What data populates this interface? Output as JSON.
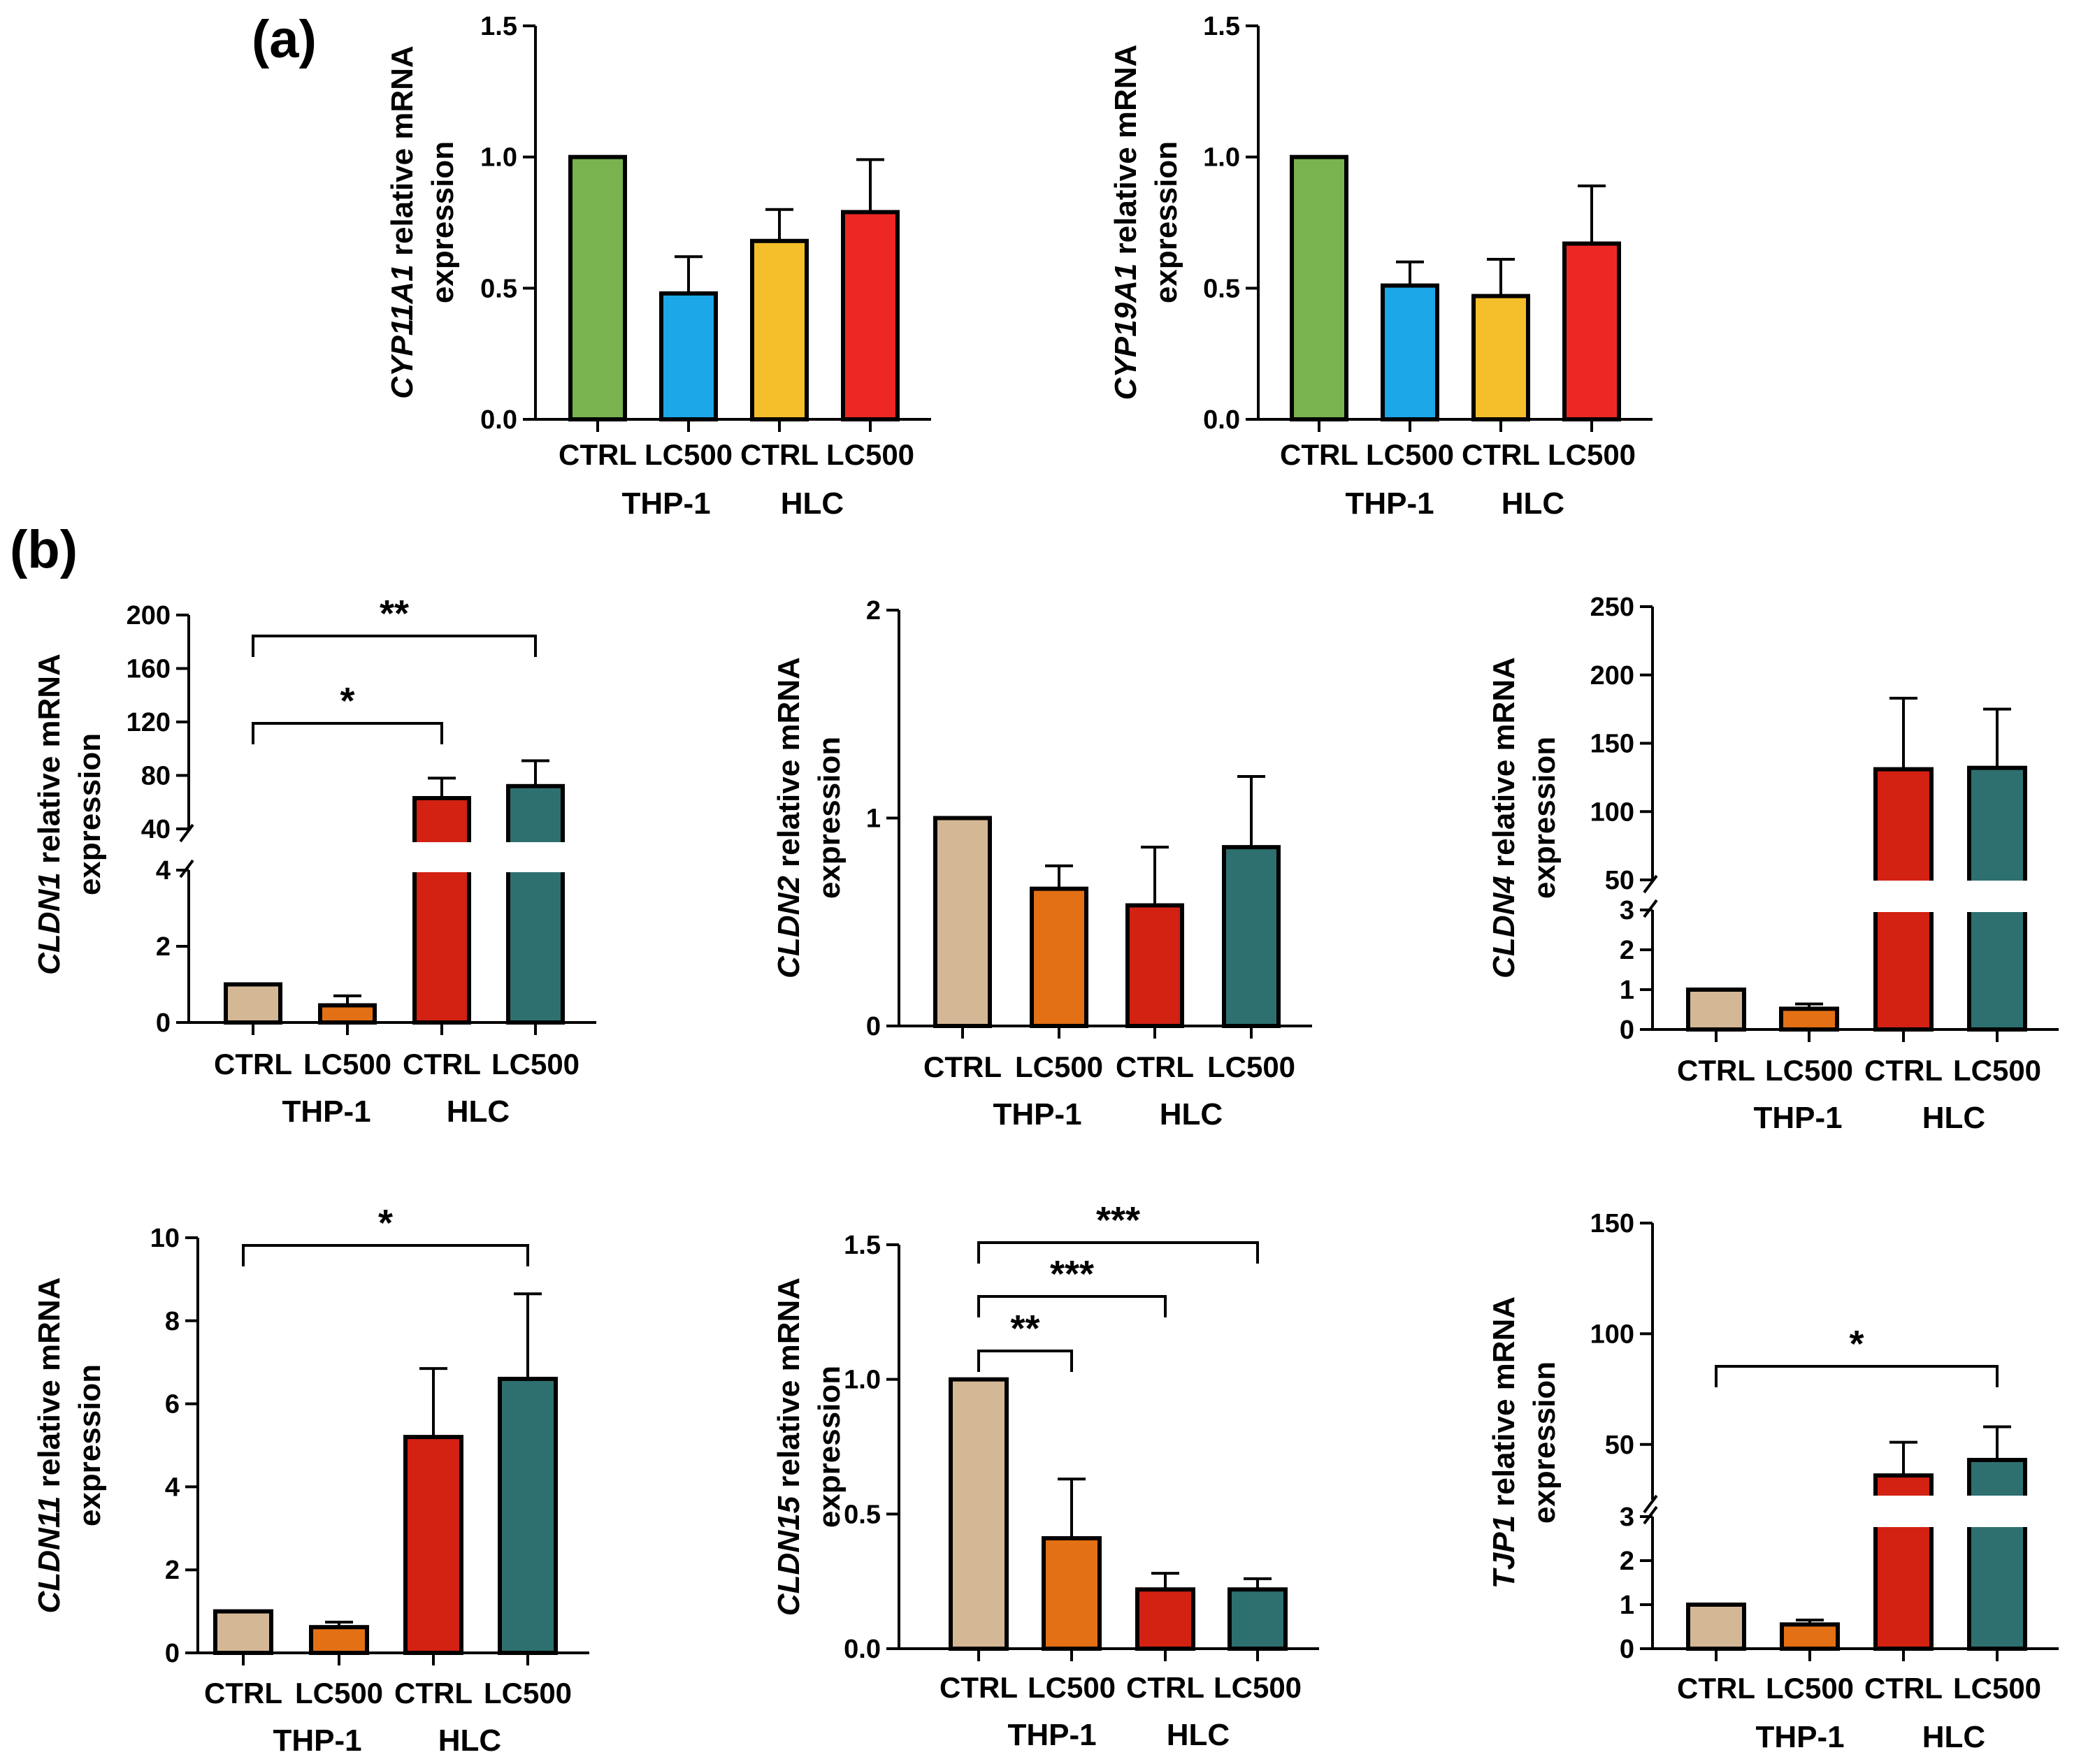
{
  "panel_labels": [
    "(a)",
    "(b)"
  ],
  "y_title_suffix": "relative mRNA",
  "y_title_line2": "expression",
  "categories": [
    "CTRL",
    "LC500",
    "CTRL",
    "LC500"
  ],
  "groups": [
    "THP-1",
    "HLC"
  ],
  "colors": {
    "panel_a": [
      "#78b350",
      "#1ba7e8",
      "#f4bf2a",
      "#ed2824"
    ],
    "panel_b": [
      "#d4b895",
      "#e37015",
      "#d32112",
      "#2e7070"
    ]
  },
  "chart_data": [
    {
      "id": "cyp11a1",
      "type": "bar",
      "gene": "CYP11A1",
      "categories": [
        "CTRL",
        "LC500",
        "CTRL",
        "LC500"
      ],
      "groups": [
        "THP-1",
        "HLC"
      ],
      "values": [
        1.0,
        0.48,
        0.68,
        0.79
      ],
      "errors": [
        0,
        0.14,
        0.12,
        0.2
      ],
      "ylim": [
        0,
        1.5
      ],
      "ticks": [
        "0.0",
        "0.5",
        "1.0",
        "1.5"
      ],
      "significance": []
    },
    {
      "id": "cyp19a1",
      "type": "bar",
      "gene": "CYP19A1",
      "categories": [
        "CTRL",
        "LC500",
        "CTRL",
        "LC500"
      ],
      "groups": [
        "THP-1",
        "HLC"
      ],
      "values": [
        1.0,
        0.51,
        0.47,
        0.67
      ],
      "errors": [
        0,
        0.09,
        0.14,
        0.22
      ],
      "ylim": [
        0,
        1.5
      ],
      "ticks": [
        "0.0",
        "0.5",
        "1.0",
        "1.5"
      ],
      "significance": []
    },
    {
      "id": "cldn1",
      "type": "bar",
      "gene": "CLDN1",
      "categories": [
        "CTRL",
        "LC500",
        "CTRL",
        "LC500"
      ],
      "groups": [
        "THP-1",
        "HLC"
      ],
      "values": [
        1.0,
        0.45,
        63,
        72
      ],
      "errors": [
        0,
        0.25,
        15,
        19
      ],
      "axis_break": {
        "lower": [
          0,
          4
        ],
        "upper": [
          40,
          200
        ]
      },
      "ticks": [
        "0",
        "2",
        "4",
        "40",
        "80",
        "120",
        "160",
        "200"
      ],
      "significance": [
        {
          "from": 0,
          "to": 2,
          "label": "*"
        },
        {
          "from": 0,
          "to": 3,
          "label": "**"
        }
      ]
    },
    {
      "id": "cldn2",
      "type": "bar",
      "gene": "CLDN2",
      "categories": [
        "CTRL",
        "LC500",
        "CTRL",
        "LC500"
      ],
      "groups": [
        "THP-1",
        "HLC"
      ],
      "values": [
        1.0,
        0.66,
        0.58,
        0.86
      ],
      "errors": [
        0,
        0.11,
        0.28,
        0.34
      ],
      "ylim": [
        0,
        2
      ],
      "ticks": [
        "0",
        "1",
        "2"
      ],
      "significance": []
    },
    {
      "id": "cldn4",
      "type": "bar",
      "gene": "CLDN4",
      "categories": [
        "CTRL",
        "LC500",
        "CTRL",
        "LC500"
      ],
      "groups": [
        "THP-1",
        "HLC"
      ],
      "values": [
        1.0,
        0.52,
        131,
        132
      ],
      "errors": [
        0,
        0.12,
        52,
        43
      ],
      "axis_break": {
        "lower": [
          0,
          3
        ],
        "upper": [
          50,
          250
        ]
      },
      "ticks": [
        "0",
        "1",
        "2",
        "3",
        "50",
        "100",
        "150",
        "200",
        "250"
      ],
      "significance": []
    },
    {
      "id": "cldn11",
      "type": "bar",
      "gene": "CLDN11",
      "categories": [
        "CTRL",
        "LC500",
        "CTRL",
        "LC500"
      ],
      "groups": [
        "THP-1",
        "HLC"
      ],
      "values": [
        1.0,
        0.62,
        5.2,
        6.6
      ],
      "errors": [
        0,
        0.12,
        1.65,
        2.05
      ],
      "ylim": [
        0,
        10
      ],
      "ticks": [
        "0",
        "2",
        "4",
        "6",
        "8",
        "10"
      ],
      "significance": [
        {
          "from": 0,
          "to": 3,
          "label": "*"
        }
      ]
    },
    {
      "id": "cldn15",
      "type": "bar",
      "gene": "CLDN15",
      "categories": [
        "CTRL",
        "LC500",
        "CTRL",
        "LC500"
      ],
      "groups": [
        "THP-1",
        "HLC"
      ],
      "values": [
        1.0,
        0.41,
        0.22,
        0.22
      ],
      "errors": [
        0,
        0.22,
        0.06,
        0.04
      ],
      "ylim": [
        0,
        1.5
      ],
      "ticks": [
        "0.0",
        "0.5",
        "1.0",
        "1.5"
      ],
      "significance": [
        {
          "from": 0,
          "to": 1,
          "label": "**"
        },
        {
          "from": 0,
          "to": 2,
          "label": "***"
        },
        {
          "from": 0,
          "to": 3,
          "label": "***"
        }
      ]
    },
    {
      "id": "tjp1",
      "type": "bar",
      "gene": "TJP1",
      "categories": [
        "CTRL",
        "LC500",
        "CTRL",
        "LC500"
      ],
      "groups": [
        "THP-1",
        "HLC"
      ],
      "values": [
        1.0,
        0.55,
        36,
        43
      ],
      "errors": [
        0,
        0.1,
        15,
        15
      ],
      "axis_break": {
        "lower": [
          0,
          3
        ],
        "upper": [
          25,
          150
        ]
      },
      "ticks": [
        "0",
        "1",
        "2",
        "3",
        "50",
        "100",
        "150"
      ],
      "significance": [
        {
          "from": 0,
          "to": 3,
          "label": "*"
        }
      ]
    }
  ]
}
